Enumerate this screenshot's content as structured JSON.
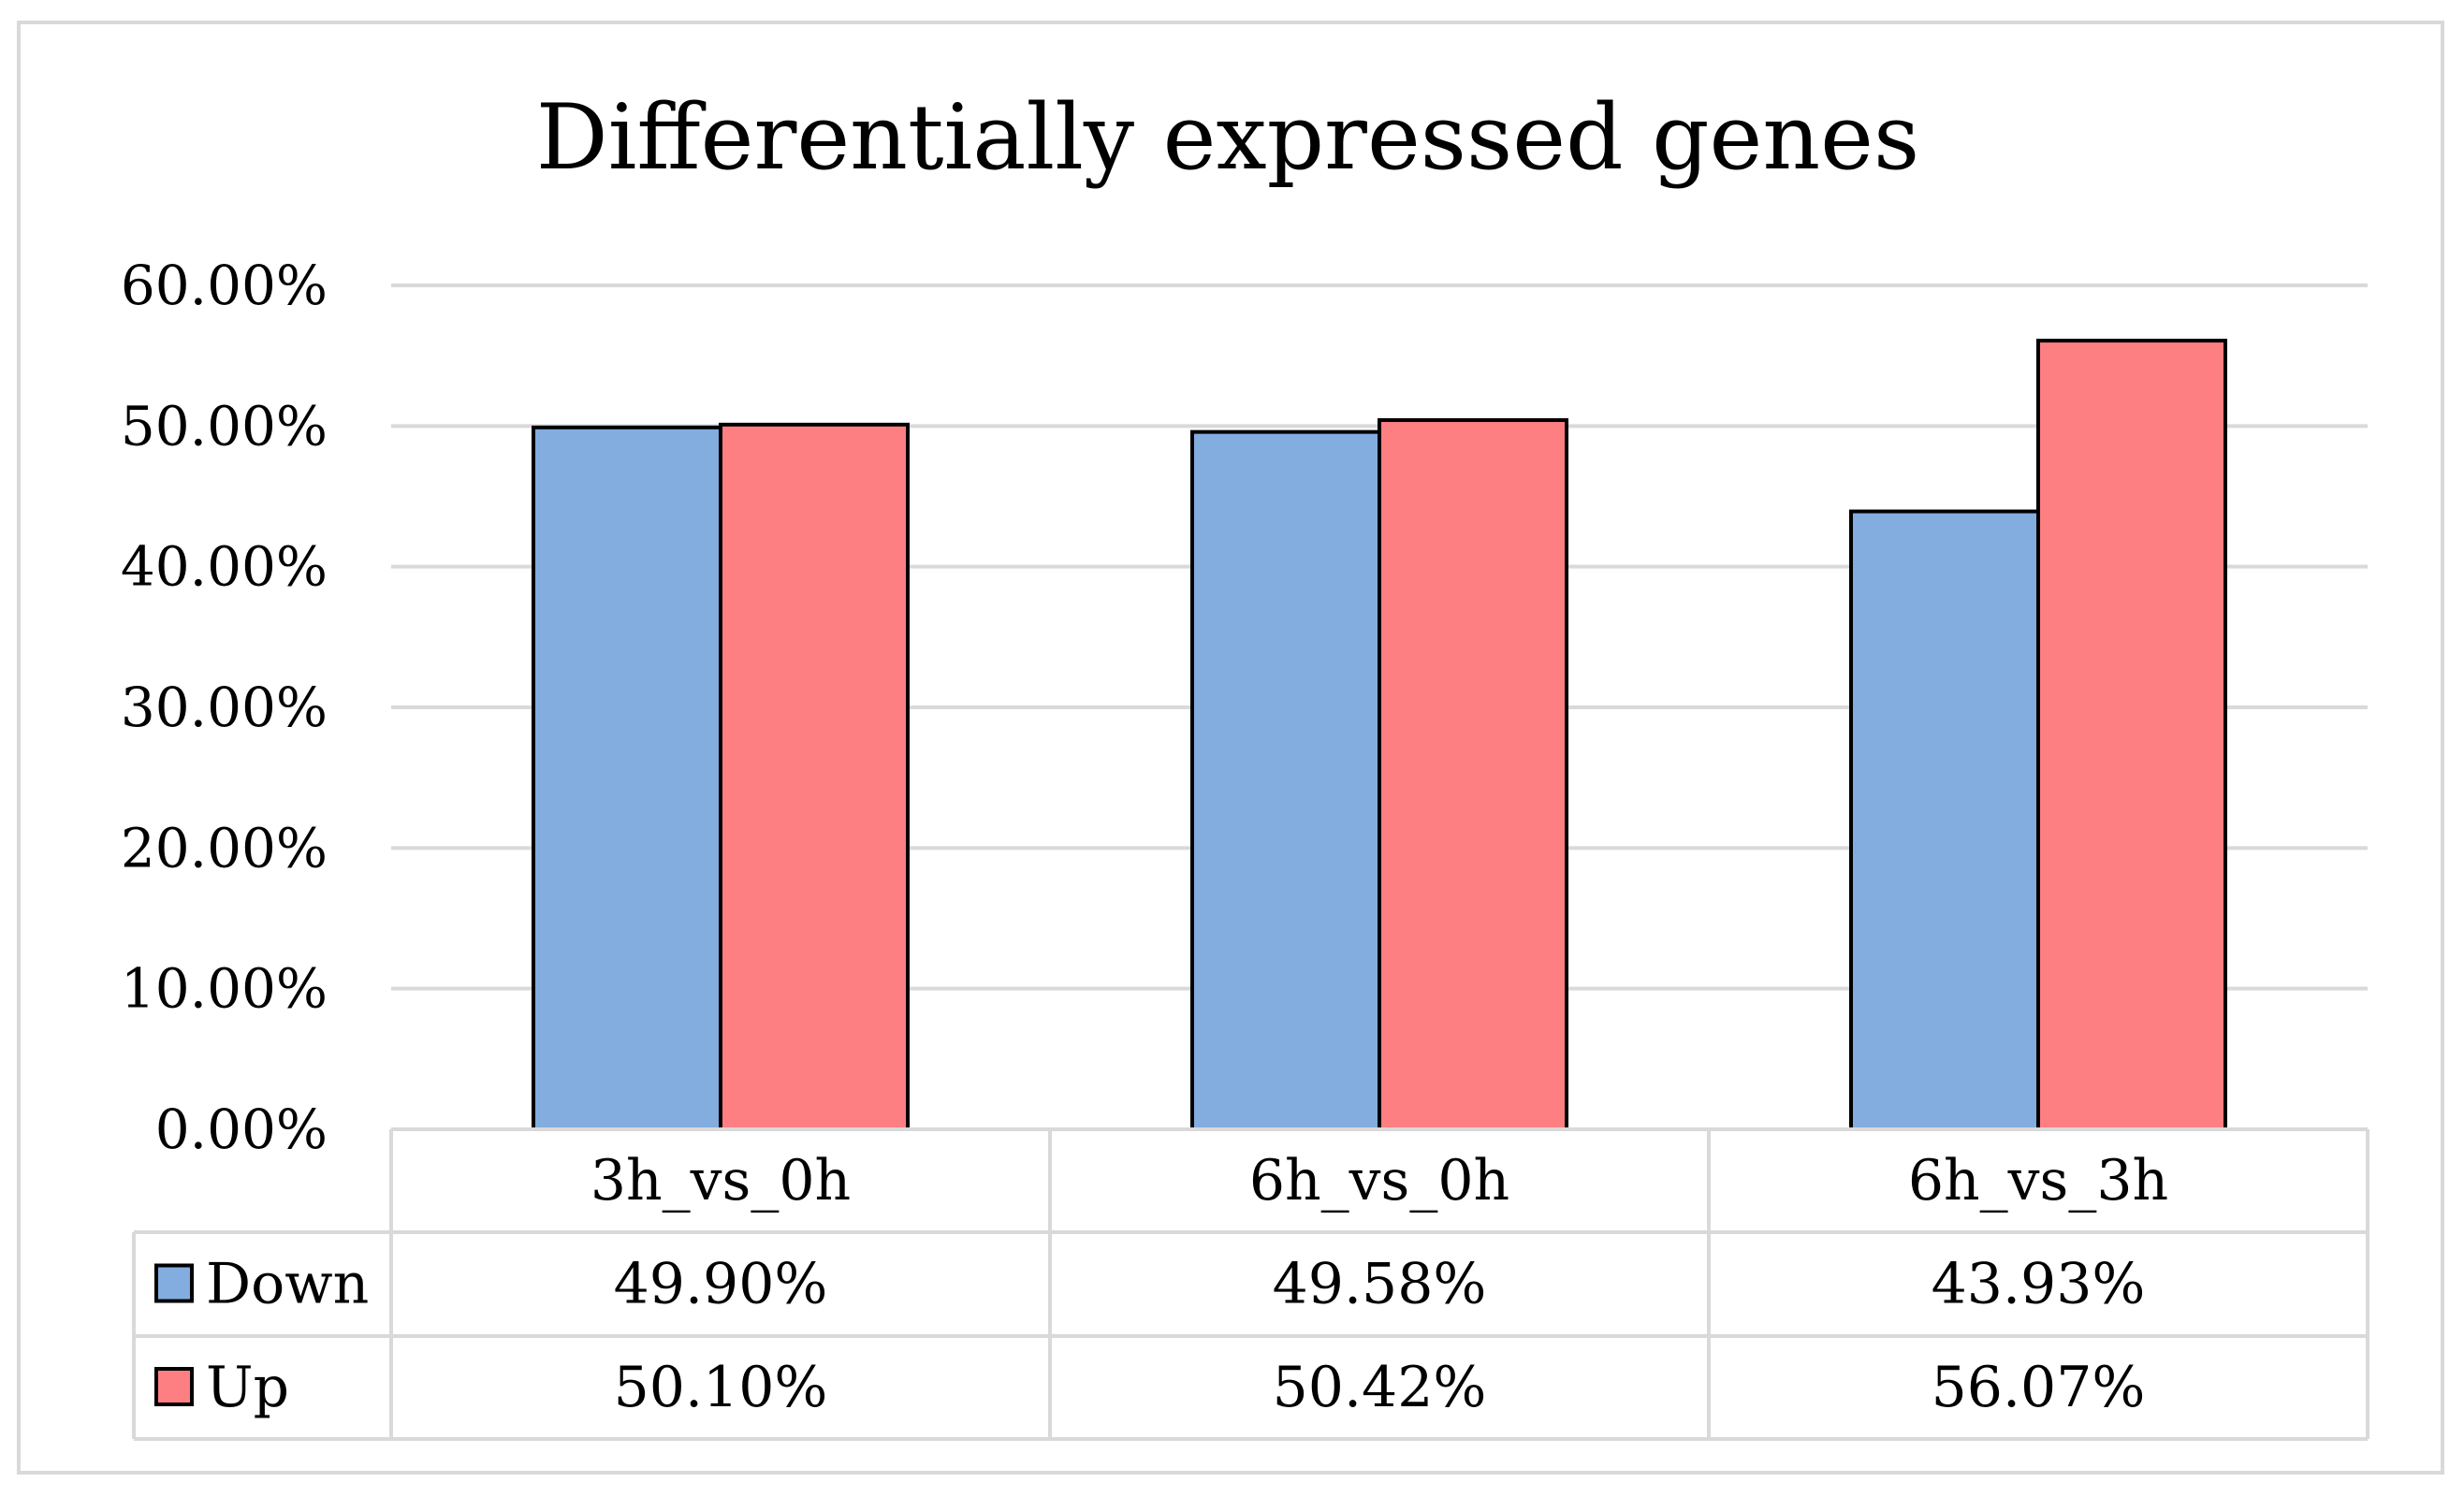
{
  "chart_data": {
    "type": "bar",
    "title": "Differentially expressed genes",
    "categories": [
      "3h_vs_0h",
      "6h_vs_0h",
      "6h_vs_3h"
    ],
    "series": [
      {
        "name": "Down",
        "color": "#83acdf",
        "values": [
          49.9,
          49.58,
          43.93
        ],
        "labels": [
          "49.90%",
          "49.58%",
          "43.93%"
        ]
      },
      {
        "name": "Up",
        "color": "#fe7f82",
        "values": [
          50.1,
          50.42,
          56.07
        ],
        "labels": [
          "50.10%",
          "50.42%",
          "56.07%"
        ]
      }
    ],
    "ylim": [
      0,
      60
    ],
    "yticks": [
      0,
      10,
      20,
      30,
      40,
      50,
      60
    ],
    "ytick_labels": [
      "0.00%",
      "10.00%",
      "20.00%",
      "30.00%",
      "40.00%",
      "50.00%",
      "60.00%"
    ],
    "xlabel": "",
    "ylabel": "",
    "grid": true,
    "legend": "data-table",
    "colors": {
      "gridline": "#d9d9d9",
      "table_border": "#d9d9d9",
      "bar_outline": "#000000",
      "text": "#000000"
    }
  }
}
